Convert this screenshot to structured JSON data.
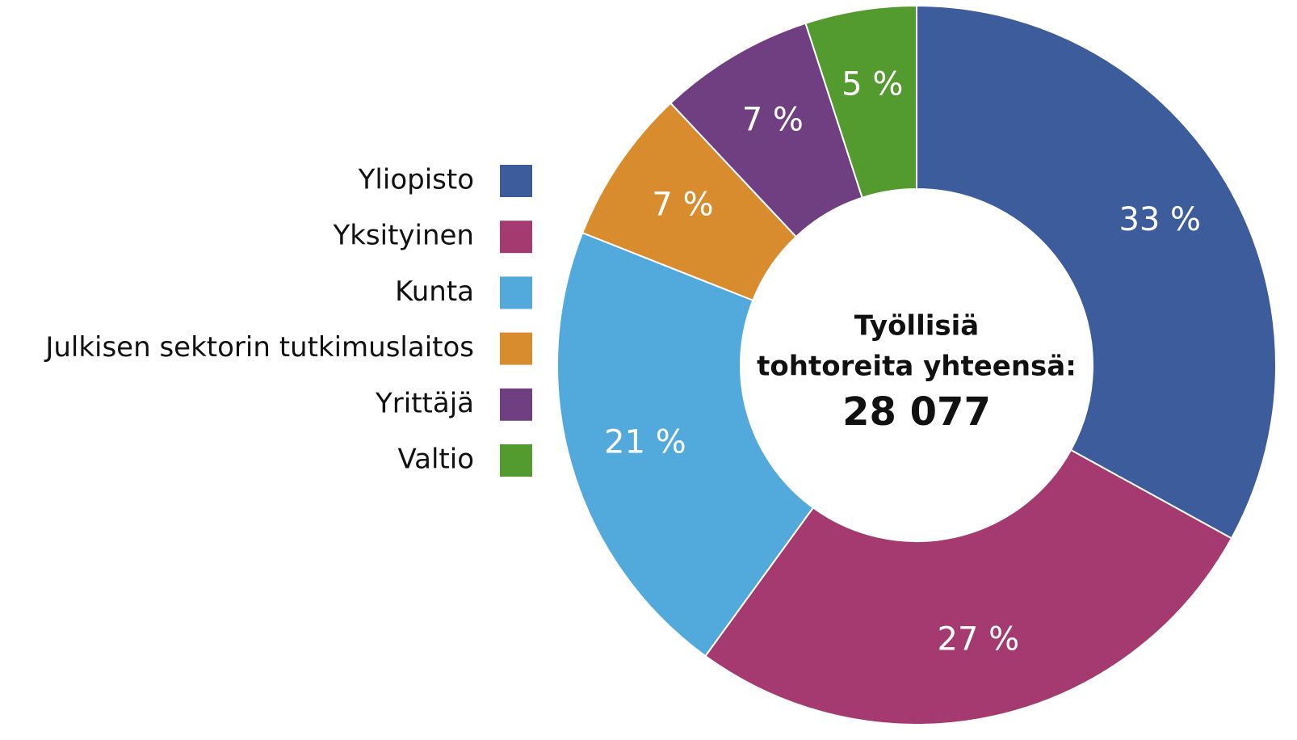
{
  "chart_data": {
    "type": "donut",
    "categories": [
      "Yliopisto",
      "Yksityinen",
      "Kunta",
      "Julkisen sektorin tutkimuslaitos",
      "Yrittäjä",
      "Valtio"
    ],
    "values": [
      33,
      27,
      21,
      7,
      7,
      5
    ],
    "value_labels": [
      "33 %",
      "27 %",
      "21 %",
      "7 %",
      "7 %",
      "5 %"
    ],
    "colors": [
      "#3c5c9b",
      "#a43a6f",
      "#52a9dc",
      "#d98c2e",
      "#6f3f82",
      "#549b2f"
    ],
    "center_text": [
      "Työllisiä",
      "tohtoreita yhteensä:",
      "28 077"
    ],
    "legend": "left"
  }
}
